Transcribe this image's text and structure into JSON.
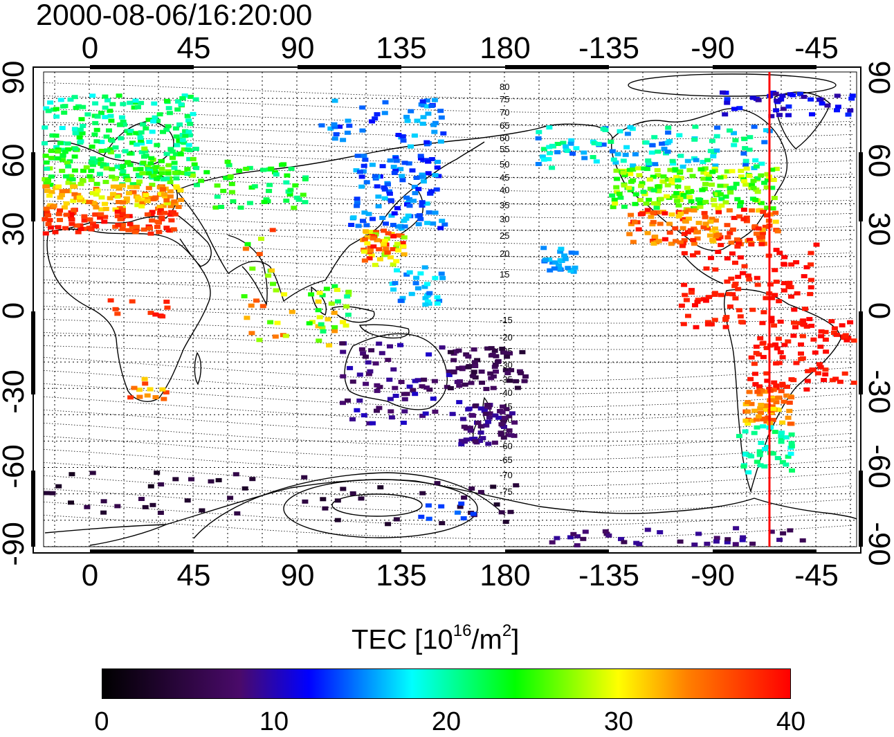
{
  "timestamp": "2000-08-06/16:20:00",
  "map": {
    "lon_ticks": [
      "0",
      "45",
      "90",
      "135",
      "180",
      "-135",
      "-90",
      "-45"
    ],
    "lat_ticks_left": [
      "90",
      "60",
      "30",
      "0",
      "-30",
      "-60",
      "-90"
    ],
    "lat_ticks_right": [
      "90",
      "60",
      "30",
      "0",
      "-30",
      "-60",
      "-90"
    ],
    "contour_labels": [
      "80",
      "75",
      "70",
      "65",
      "60",
      "55",
      "50",
      "45",
      "40",
      "35",
      "30",
      "25",
      "20",
      "15",
      "-15",
      "-20",
      "-25",
      "-30",
      "-35",
      "-40",
      "-45",
      "-50",
      "-55",
      "-60",
      "-65",
      "-70",
      "-75"
    ],
    "terminator_longitude": -65,
    "terminator_color": "#ff0000"
  },
  "colorbar": {
    "title_prefix": "TEC  [10",
    "title_exp1": "16",
    "title_mid": "/m",
    "title_exp2": "2",
    "title_suffix": "]",
    "labels": [
      "0",
      "10",
      "20",
      "30",
      "40"
    ],
    "min": 0,
    "max": 40,
    "colormap_stops": [
      "#000000",
      "#4a0a6a",
      "#0000ff",
      "#00ffff",
      "#00ff00",
      "#ffff00",
      "#ff8000",
      "#ff0000"
    ]
  }
}
